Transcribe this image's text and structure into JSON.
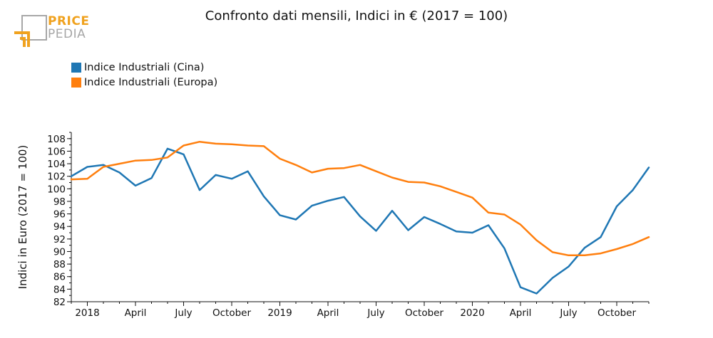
{
  "brand": {
    "line1": "PRICE",
    "line2": "PEDIA"
  },
  "colors": {
    "cina": "#1f77b4",
    "europa": "#ff7f0e",
    "brand_orange": "#f0a21f",
    "brand_grey": "#a7a7a7"
  },
  "chart_data": {
    "type": "line",
    "title": "Confronto dati mensili, Indici in € (2017 = 100)",
    "xlabel": "",
    "ylabel": "Indici in Euro (2017 = 100)",
    "ylim": [
      82,
      109
    ],
    "yticks": [
      82,
      84,
      86,
      88,
      90,
      92,
      94,
      96,
      98,
      100,
      102,
      104,
      106,
      108
    ],
    "x": [
      "2017-12",
      "2018-01",
      "2018-02",
      "2018-03",
      "2018-04",
      "2018-05",
      "2018-06",
      "2018-07",
      "2018-08",
      "2018-09",
      "2018-10",
      "2018-11",
      "2018-12",
      "2019-01",
      "2019-02",
      "2019-03",
      "2019-04",
      "2019-05",
      "2019-06",
      "2019-07",
      "2019-08",
      "2019-09",
      "2019-10",
      "2019-11",
      "2019-12",
      "2020-01",
      "2020-02",
      "2020-03",
      "2020-04",
      "2020-05",
      "2020-06",
      "2020-07",
      "2020-08",
      "2020-09",
      "2020-10",
      "2020-11",
      "2020-12"
    ],
    "xticks": [
      {
        "index": 1,
        "label": "2018"
      },
      {
        "index": 4,
        "label": "April"
      },
      {
        "index": 7,
        "label": "July"
      },
      {
        "index": 10,
        "label": "October"
      },
      {
        "index": 13,
        "label": "2019"
      },
      {
        "index": 16,
        "label": "April"
      },
      {
        "index": 19,
        "label": "July"
      },
      {
        "index": 22,
        "label": "October"
      },
      {
        "index": 25,
        "label": "2020"
      },
      {
        "index": 28,
        "label": "April"
      },
      {
        "index": 31,
        "label": "July"
      },
      {
        "index": 34,
        "label": "October"
      }
    ],
    "legend_position": "top-left",
    "series": [
      {
        "name": "Indice Industriali (Cina)",
        "color": "#1f77b4",
        "values": [
          102.0,
          103.5,
          103.8,
          102.6,
          100.5,
          101.7,
          106.4,
          105.5,
          99.8,
          102.2,
          101.6,
          102.8,
          98.8,
          95.8,
          95.1,
          97.3,
          98.1,
          98.7,
          95.6,
          93.3,
          96.5,
          93.4,
          95.5,
          94.4,
          93.2,
          93.0,
          94.2,
          90.5,
          84.3,
          83.3,
          85.8,
          87.6,
          90.6,
          92.3,
          97.2,
          99.8,
          103.4
        ]
      },
      {
        "name": "Indice Industriali (Europa)",
        "color": "#ff7f0e",
        "values": [
          101.5,
          101.6,
          103.5,
          104.0,
          104.5,
          104.6,
          105.0,
          106.9,
          107.5,
          107.2,
          107.1,
          106.9,
          106.8,
          104.8,
          103.8,
          102.6,
          103.2,
          103.3,
          103.8,
          102.8,
          101.8,
          101.1,
          101.0,
          100.4,
          99.5,
          98.6,
          96.2,
          95.9,
          94.3,
          91.8,
          89.9,
          89.4,
          89.4,
          89.7,
          90.4,
          91.2,
          92.3
        ]
      }
    ]
  }
}
